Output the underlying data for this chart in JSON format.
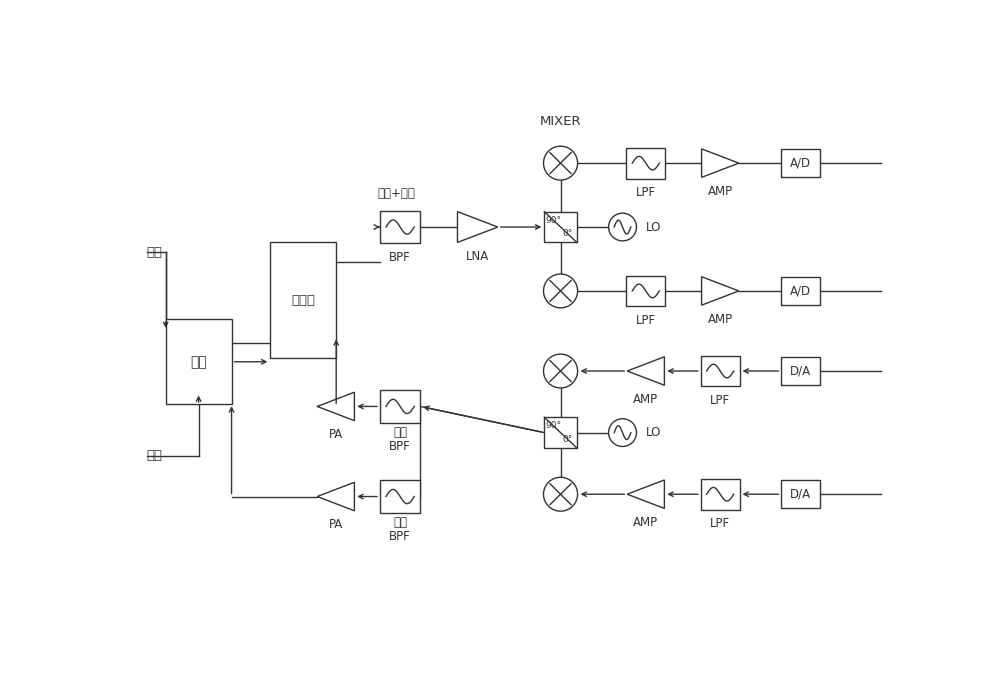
{
  "bg_color": "#ffffff",
  "line_color": "#333333",
  "box_color": "#ffffff",
  "text_color": "#333333",
  "figsize": [
    10.0,
    6.92
  ],
  "dpi": 100,
  "xlim": [
    0,
    10
  ],
  "ylim": [
    0,
    6.92
  ]
}
